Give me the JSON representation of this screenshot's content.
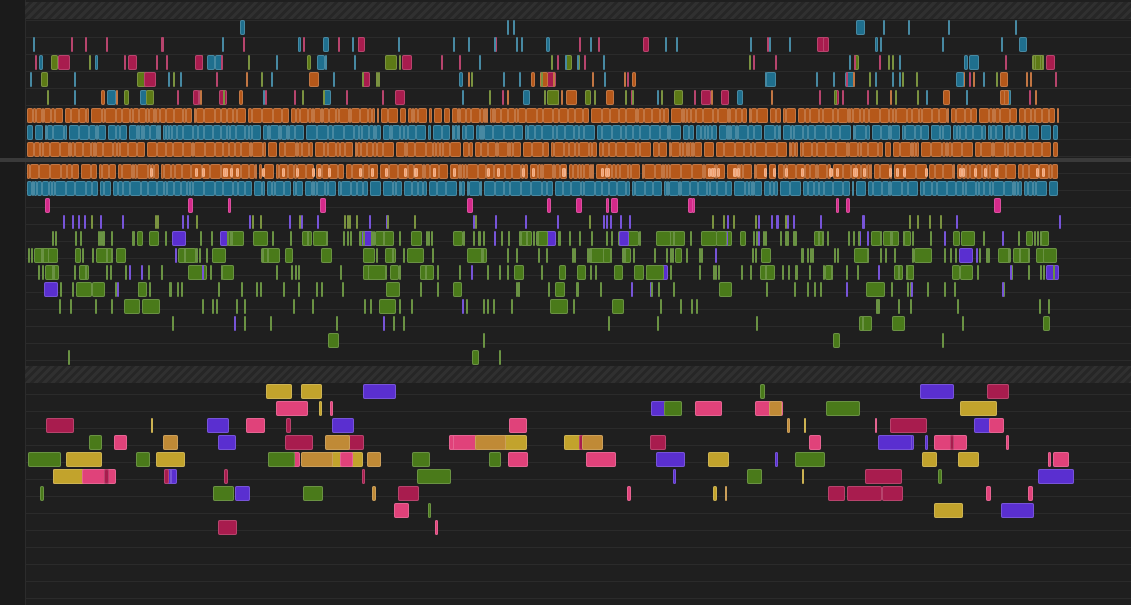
{
  "app": {
    "name": ""
  },
  "theme": {
    "background": "#1f1f1f",
    "gutter": "#1b1b1b",
    "lane_line": "#2b2b2b",
    "colors": {
      "orange": "#b5581a",
      "teal": "#1f6f8e",
      "crimson": "#a81c4e",
      "olive": "#5d7a16",
      "green": "#4a7a1a",
      "purple": "#5a2fd0",
      "pink": "#e0427a",
      "gold": "#c2a32c",
      "ochre": "#c08a36",
      "peach": "#f0a070",
      "magenta": "#d42a8a"
    }
  },
  "timeline": {
    "sections": [
      "upper-track-group",
      "lower-track-group"
    ],
    "icons": [
      "hatched-divider",
      "event-block"
    ]
  }
}
